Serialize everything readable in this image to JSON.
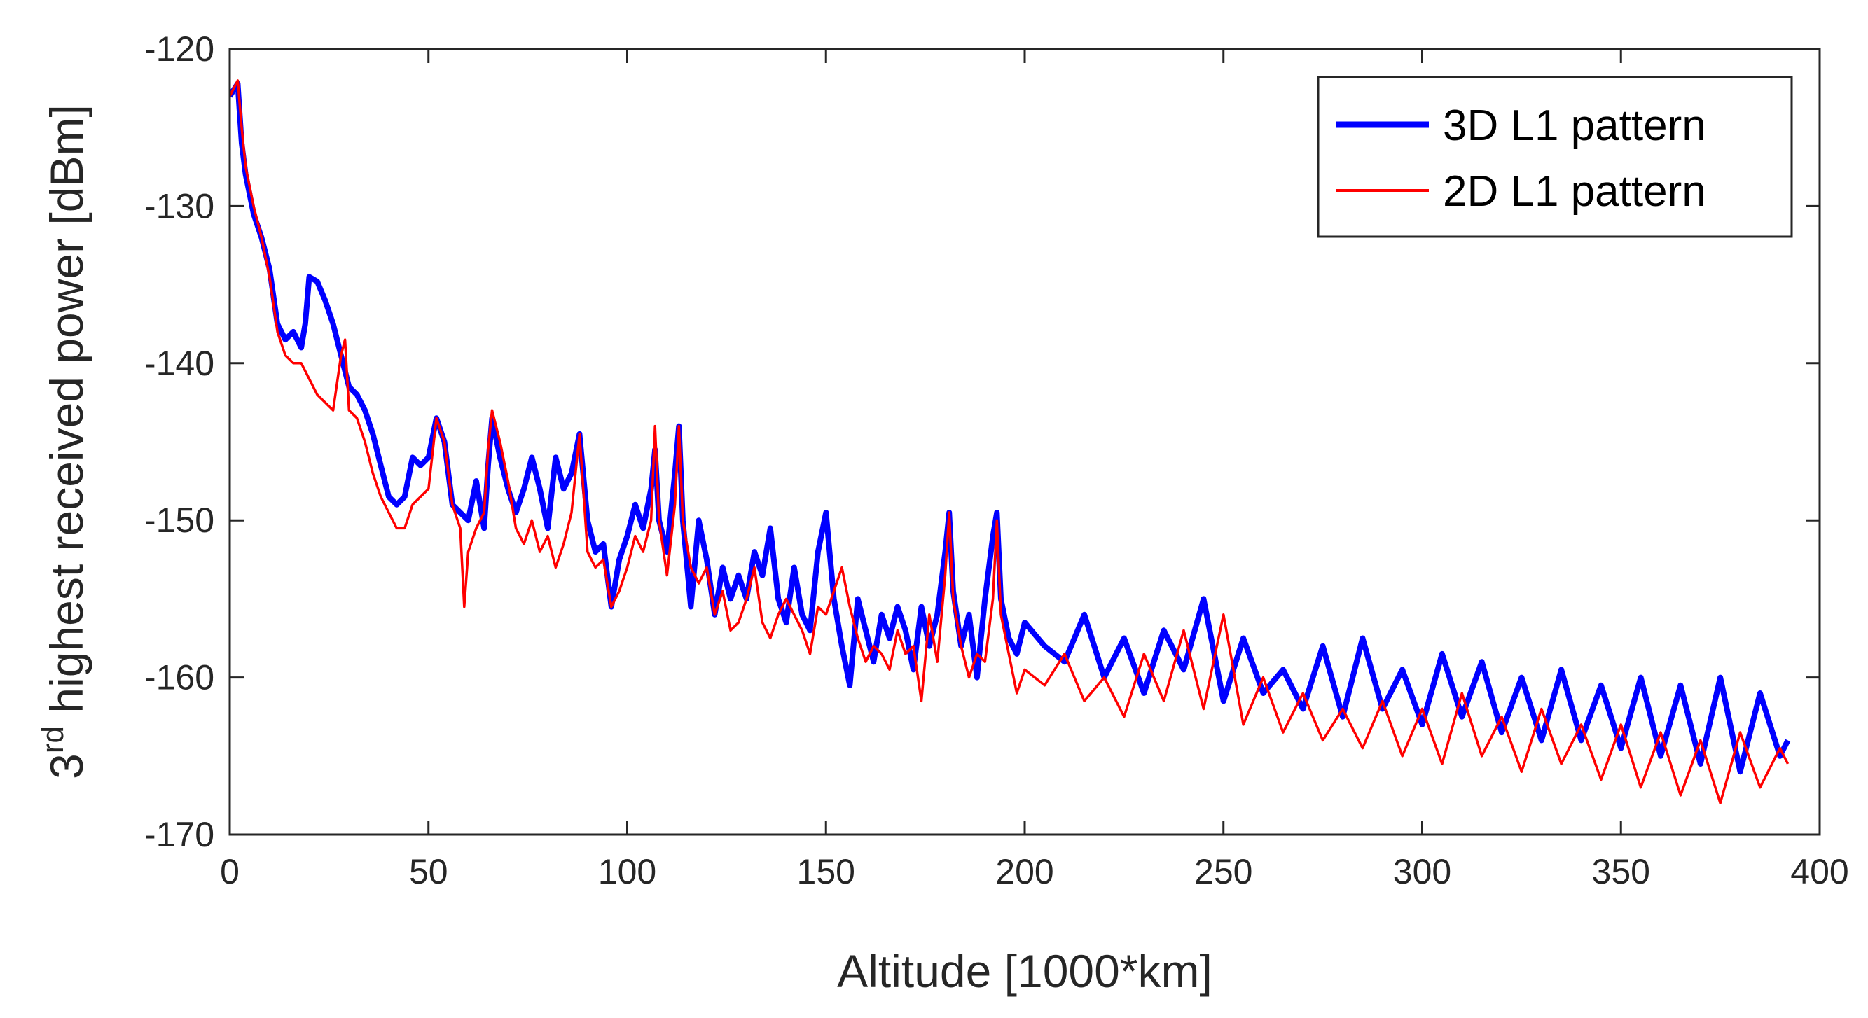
{
  "chart_data": {
    "type": "line",
    "title": "",
    "xlabel": "Altitude [1000*km]",
    "ylabel": {
      "prefix": "3",
      "superscript": "rd",
      "text": " highest received power [dBm]"
    },
    "xlim": [
      0,
      400
    ],
    "ylim": [
      -170,
      -120
    ],
    "xticks": [
      0,
      50,
      100,
      150,
      200,
      250,
      300,
      350,
      400
    ],
    "yticks": [
      -120,
      -130,
      -140,
      -150,
      -160,
      -170
    ],
    "grid": false,
    "legend_position": "top-right",
    "series": [
      {
        "name": "3D L1 pattern",
        "color": "#0000ff",
        "line_width": "thick",
        "x": [
          0,
          2,
          3,
          4,
          6,
          8,
          10,
          12,
          14,
          16,
          18,
          19,
          20,
          22,
          24,
          26,
          28,
          30,
          32,
          34,
          36,
          38,
          40,
          42,
          44,
          46,
          48,
          50,
          52,
          54,
          56,
          58,
          60,
          62,
          64,
          65,
          66,
          68,
          70,
          72,
          74,
          76,
          78,
          80,
          82,
          84,
          86,
          88,
          90,
          92,
          94,
          96,
          98,
          100,
          102,
          104,
          106,
          107,
          108,
          110,
          112,
          113,
          114,
          116,
          118,
          120,
          122,
          124,
          126,
          128,
          130,
          132,
          134,
          136,
          138,
          140,
          142,
          144,
          146,
          148,
          150,
          152,
          154,
          156,
          158,
          160,
          162,
          164,
          166,
          168,
          170,
          172,
          174,
          176,
          178,
          180,
          181,
          182,
          184,
          186,
          188,
          190,
          192,
          193,
          194,
          196,
          198,
          200,
          205,
          210,
          215,
          220,
          225,
          230,
          235,
          240,
          245,
          250,
          255,
          260,
          265,
          270,
          275,
          280,
          285,
          290,
          295,
          300,
          305,
          310,
          315,
          320,
          325,
          330,
          335,
          340,
          345,
          350,
          355,
          360,
          365,
          370,
          375,
          380,
          385,
          390,
          392
        ],
        "y": [
          -123.0,
          -122.2,
          -126.0,
          -128.0,
          -130.5,
          -132.0,
          -134.0,
          -137.5,
          -138.5,
          -138.0,
          -139.0,
          -137.5,
          -134.5,
          -134.8,
          -136.0,
          -137.5,
          -139.5,
          -141.5,
          -142.0,
          -143.0,
          -144.5,
          -146.5,
          -148.5,
          -149.0,
          -148.5,
          -146.0,
          -146.5,
          -146.0,
          -143.5,
          -145.0,
          -149.0,
          -149.5,
          -150.0,
          -147.5,
          -150.5,
          -146.5,
          -143.5,
          -146.0,
          -148.0,
          -149.5,
          -148.0,
          -146.0,
          -148.0,
          -150.5,
          -146.0,
          -148.0,
          -147.0,
          -144.5,
          -150.0,
          -152.0,
          -151.5,
          -155.5,
          -152.5,
          -151.0,
          -149.0,
          -150.5,
          -148.0,
          -145.5,
          -150.0,
          -152.0,
          -147.0,
          -144.0,
          -150.0,
          -155.5,
          -150.0,
          -152.5,
          -156.0,
          -153.0,
          -155.0,
          -153.5,
          -155.0,
          -152.0,
          -153.5,
          -150.5,
          -155.0,
          -156.5,
          -153.0,
          -156.0,
          -157.0,
          -152.0,
          -149.5,
          -155.0,
          -158.0,
          -160.5,
          -155.0,
          -157.0,
          -159.0,
          -156.0,
          -157.5,
          -155.5,
          -157.0,
          -159.5,
          -155.5,
          -158.0,
          -156.0,
          -152.0,
          -149.5,
          -154.5,
          -158.0,
          -156.0,
          -160.0,
          -155.0,
          -151.0,
          -149.5,
          -155.0,
          -157.5,
          -158.5,
          -156.5,
          -158.0,
          -159.0,
          -156.0,
          -160.0,
          -157.5,
          -161.0,
          -157.0,
          -159.5,
          -155.0,
          -161.5,
          -157.5,
          -161.0,
          -159.5,
          -162.0,
          -158.0,
          -162.5,
          -157.5,
          -162.0,
          -159.5,
          -163.0,
          -158.5,
          -162.5,
          -159.0,
          -163.5,
          -160.0,
          -164.0,
          -159.5,
          -164.0,
          -160.5,
          -164.5,
          -160.0,
          -165.0,
          -160.5,
          -165.5,
          -160.0,
          -166.0,
          -161.0,
          -165.0,
          -164.0
        ]
      },
      {
        "name": "2D L1 pattern",
        "color": "#ff0000",
        "line_width": "thin",
        "x": [
          0,
          1,
          2,
          3,
          4,
          6,
          8,
          10,
          12,
          14,
          16,
          18,
          20,
          22,
          24,
          26,
          28,
          29,
          30,
          32,
          34,
          36,
          38,
          40,
          42,
          44,
          46,
          48,
          50,
          52,
          54,
          56,
          58,
          59,
          60,
          62,
          64,
          65,
          66,
          68,
          70,
          72,
          74,
          76,
          78,
          80,
          82,
          84,
          86,
          88,
          90,
          92,
          94,
          96,
          98,
          100,
          102,
          104,
          106,
          107,
          108,
          110,
          112,
          113,
          114,
          116,
          118,
          120,
          122,
          124,
          126,
          128,
          130,
          132,
          134,
          136,
          138,
          140,
          142,
          144,
          146,
          148,
          150,
          152,
          154,
          156,
          158,
          160,
          162,
          164,
          166,
          168,
          170,
          172,
          174,
          176,
          178,
          180,
          181,
          182,
          184,
          186,
          188,
          190,
          192,
          193,
          194,
          196,
          198,
          200,
          205,
          210,
          215,
          220,
          225,
          230,
          235,
          240,
          245,
          250,
          255,
          260,
          265,
          270,
          275,
          280,
          285,
          290,
          295,
          300,
          305,
          310,
          315,
          320,
          325,
          330,
          335,
          340,
          345,
          350,
          355,
          360,
          365,
          370,
          375,
          380,
          385,
          390,
          392
        ],
        "y": [
          -123.0,
          -122.5,
          -122.0,
          -125.0,
          -127.5,
          -130.0,
          -132.0,
          -134.5,
          -138.0,
          -139.5,
          -140.0,
          -140.0,
          -141.0,
          -142.0,
          -142.5,
          -143.0,
          -139.5,
          -138.5,
          -143.0,
          -143.5,
          -145.0,
          -147.0,
          -148.5,
          -149.5,
          -150.5,
          -150.5,
          -149.0,
          -148.5,
          -148.0,
          -143.5,
          -145.0,
          -149.0,
          -150.5,
          -155.5,
          -152.0,
          -150.5,
          -149.5,
          -145.5,
          -143.0,
          -145.0,
          -147.5,
          -150.5,
          -151.5,
          -150.0,
          -152.0,
          -151.0,
          -153.0,
          -151.5,
          -149.5,
          -144.5,
          -152.0,
          -153.0,
          -152.5,
          -155.5,
          -154.5,
          -153.0,
          -151.0,
          -152.0,
          -150.0,
          -144.0,
          -150.0,
          -153.5,
          -149.0,
          -144.0,
          -150.0,
          -153.0,
          -154.0,
          -153.0,
          -156.0,
          -154.5,
          -157.0,
          -156.5,
          -155.0,
          -153.0,
          -156.5,
          -157.5,
          -156.0,
          -155.0,
          -156.0,
          -157.0,
          -158.5,
          -155.5,
          -156.0,
          -154.5,
          -153.0,
          -155.5,
          -157.5,
          -159.0,
          -158.0,
          -158.5,
          -159.5,
          -157.0,
          -158.5,
          -158.0,
          -161.5,
          -156.0,
          -159.0,
          -153.5,
          -149.5,
          -155.0,
          -158.0,
          -160.0,
          -158.5,
          -159.0,
          -155.0,
          -150.0,
          -156.0,
          -158.5,
          -161.0,
          -159.5,
          -160.5,
          -158.5,
          -161.5,
          -160.0,
          -162.5,
          -158.5,
          -161.5,
          -157.0,
          -162.0,
          -156.0,
          -163.0,
          -160.0,
          -163.5,
          -161.0,
          -164.0,
          -162.0,
          -164.5,
          -161.5,
          -165.0,
          -162.0,
          -165.5,
          -161.0,
          -165.0,
          -162.5,
          -166.0,
          -162.0,
          -165.5,
          -163.0,
          -166.5,
          -163.0,
          -167.0,
          -163.5,
          -167.5,
          -164.0,
          -168.0,
          -163.5,
          -167.0,
          -164.5,
          -165.5
        ]
      }
    ]
  }
}
